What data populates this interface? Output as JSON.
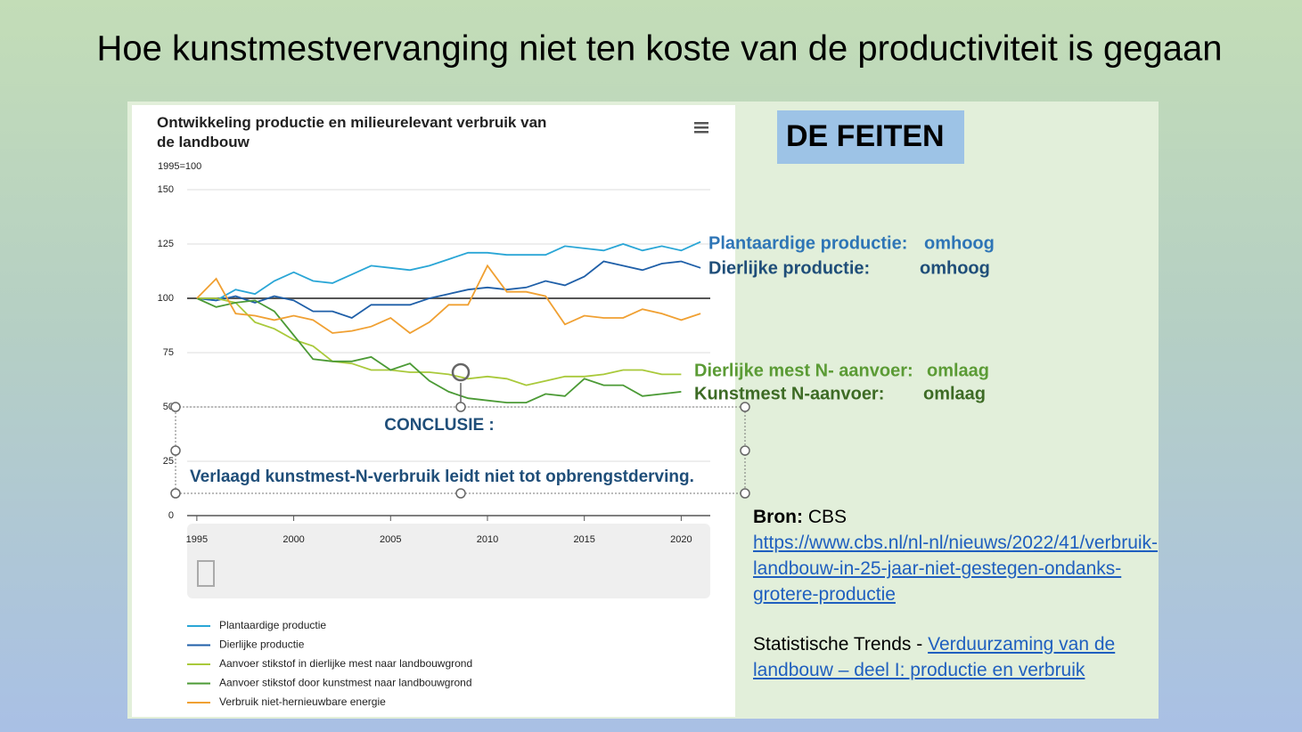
{
  "slide_title": "Hoe kunstmestvervanging niet ten koste van de productiviteit is gegaan",
  "facts_heading": "DE FEITEN",
  "annotations": [
    {
      "label": "Plantaardige productie:",
      "status": "omhoog",
      "color": "#2e75b6"
    },
    {
      "label": "Dierlijke productie:",
      "status": "omhoog",
      "color": "#1f4e79"
    },
    {
      "label": "Dierlijke mest N- aanvoer:",
      "status": "omlaag",
      "color": "#5b9b35"
    },
    {
      "label": "Kunstmest N-aanvoer:",
      "status": "omlaag",
      "color": "#3d6b25"
    }
  ],
  "conclusion": {
    "heading": "CONCLUSIE :",
    "text": "Verlaagd kunstmest-N-verbruik leidt niet tot opbrengstderving."
  },
  "source": {
    "label": "Bron:",
    "name": "CBS",
    "url": "https://www.cbs.nl/nl-nl/nieuws/2022/41/verbruik-landbouw-in-25-jaar-niet-gestegen-ondanks-grotere-productie",
    "trends_prefix": "Statistische Trends -",
    "trends_link": "Verduurzaming van de landbouw – deel I: productie en verbruik"
  },
  "chart_data": {
    "type": "line",
    "title": "Ontwikkeling productie en milieurelevant verbruik van de landbouw",
    "y_label": "1995=100",
    "x": [
      1995,
      1996,
      1997,
      1998,
      1999,
      2000,
      2001,
      2002,
      2003,
      2004,
      2005,
      2006,
      2007,
      2008,
      2009,
      2010,
      2011,
      2012,
      2013,
      2014,
      2015,
      2016,
      2017,
      2018,
      2019,
      2020,
      2021
    ],
    "xlim": [
      1994.5,
      2021.5
    ],
    "xticks": [
      1995,
      2000,
      2005,
      2010,
      2015,
      2020
    ],
    "ylim": [
      0,
      150
    ],
    "yticks": [
      0,
      25,
      50,
      75,
      100,
      125,
      150
    ],
    "grid": true,
    "reference_line": 100,
    "series": [
      {
        "name": "Plantaardige productie",
        "color": "#2aa6d6",
        "values": [
          100,
          99,
          104,
          102,
          108,
          112,
          108,
          107,
          111,
          115,
          114,
          113,
          115,
          118,
          121,
          121,
          120,
          120,
          120,
          124,
          123,
          122,
          125,
          122,
          124,
          122,
          126
        ]
      },
      {
        "name": "Dierlijke productie",
        "color": "#1f5fa8",
        "values": [
          100,
          99,
          101,
          98,
          101,
          99,
          94,
          94,
          91,
          97,
          97,
          97,
          100,
          102,
          104,
          105,
          104,
          105,
          108,
          106,
          110,
          117,
          115,
          113,
          116,
          117,
          114
        ]
      },
      {
        "name": "Aanvoer stikstof in dierlijke mest naar landbouwgrond",
        "color": "#a9c93a",
        "values": [
          100,
          100,
          98,
          89,
          86,
          81,
          78,
          71,
          70,
          67,
          67,
          66,
          66,
          65,
          63,
          64,
          63,
          60,
          62,
          64,
          64,
          65,
          67,
          67,
          65,
          65,
          null
        ]
      },
      {
        "name": "Aanvoer stikstof door kunstmest naar landbouwgrond",
        "color": "#4b9a35",
        "values": [
          100,
          96,
          98,
          99,
          94,
          83,
          72,
          71,
          71,
          73,
          67,
          70,
          62,
          57,
          54,
          53,
          52,
          52,
          56,
          55,
          63,
          60,
          60,
          55,
          56,
          57,
          null
        ]
      },
      {
        "name": "Verbruik niet-hernieuwbare energie",
        "color": "#f0a032",
        "values": [
          100,
          109,
          93,
          92,
          90,
          92,
          90,
          84,
          85,
          87,
          91,
          84,
          89,
          97,
          97,
          115,
          103,
          103,
          101,
          88,
          92,
          91,
          91,
          95,
          93,
          90,
          93
        ]
      }
    ]
  }
}
